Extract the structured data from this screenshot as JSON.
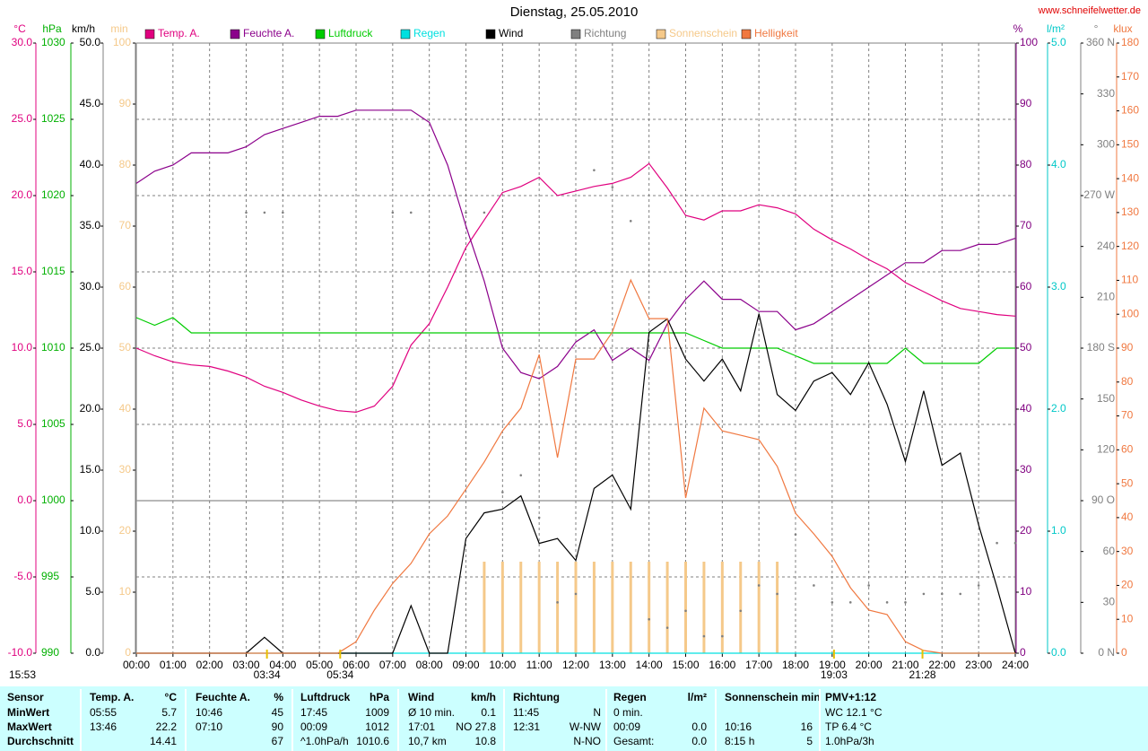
{
  "chart_data": {
    "type": "line",
    "title": "Dienstag, 25.05.2010",
    "source": "www.schneifelwetter.de",
    "timestamp": "15:53",
    "sun_times": [
      "03:34",
      "05:34",
      "19:03",
      "21:28"
    ],
    "x": [
      0,
      0.5,
      1,
      1.5,
      2,
      2.5,
      3,
      3.5,
      4,
      4.5,
      5,
      5.5,
      6,
      6.5,
      7,
      7.5,
      8,
      8.5,
      9,
      9.5,
      10,
      10.5,
      11,
      11.5,
      12,
      12.5,
      13,
      13.5,
      14,
      14.5,
      15,
      15.5,
      16,
      16.5,
      17,
      17.5,
      18,
      18.5,
      19,
      19.5,
      20,
      20.5,
      21,
      21.5,
      22,
      22.5,
      23,
      23.5,
      24
    ],
    "xlim": [
      0,
      24
    ],
    "xticks": [
      {
        "value": 0,
        "label": "00:00"
      },
      {
        "value": 1,
        "label": "01:00"
      },
      {
        "value": 2,
        "label": "02:00"
      },
      {
        "value": 3,
        "label": "03:00"
      },
      {
        "value": 4,
        "label": "04:00"
      },
      {
        "value": 5,
        "label": "05:00"
      },
      {
        "value": 6,
        "label": "06:00"
      },
      {
        "value": 7,
        "label": "07:00"
      },
      {
        "value": 8,
        "label": "08:00"
      },
      {
        "value": 9,
        "label": "09:00"
      },
      {
        "value": 10,
        "label": "10:00"
      },
      {
        "value": 11,
        "label": "11:00"
      },
      {
        "value": 12,
        "label": "12:00"
      },
      {
        "value": 13,
        "label": "13:00"
      },
      {
        "value": 14,
        "label": "14:00"
      },
      {
        "value": 15,
        "label": "15:00"
      },
      {
        "value": 16,
        "label": "16:00"
      },
      {
        "value": 17,
        "label": "17:00"
      },
      {
        "value": 18,
        "label": "18:00"
      },
      {
        "value": 19,
        "label": "19:00"
      },
      {
        "value": 20,
        "label": "20:00"
      },
      {
        "value": 21,
        "label": "21:00"
      },
      {
        "value": 22,
        "label": "22:00"
      },
      {
        "value": 23,
        "label": "23:00"
      },
      {
        "value": 24,
        "label": "24:00"
      }
    ],
    "grid": true,
    "axes": [
      {
        "label": "°C",
        "color": "#e0007f",
        "lim": [
          -10,
          30
        ],
        "ticks": [
          {
            "value": -10,
            "label": "-10.0"
          },
          {
            "value": -5,
            "label": "-5.0"
          },
          {
            "value": 0,
            "label": "0.0"
          },
          {
            "value": 5,
            "label": "5.0"
          },
          {
            "value": 10,
            "label": "10.0"
          },
          {
            "value": 15,
            "label": "15.0"
          },
          {
            "value": 20,
            "label": "20.0"
          },
          {
            "value": 25,
            "label": "25.0"
          },
          {
            "value": 30,
            "label": "30.0"
          }
        ]
      },
      {
        "label": "hPa",
        "color": "#00b000",
        "lim": [
          990,
          1030
        ],
        "ticks": [
          990,
          995,
          1000,
          1005,
          1010,
          1015,
          1020,
          1025,
          1030
        ]
      },
      {
        "label": "km/h",
        "color": "#000000",
        "lim": [
          0,
          50
        ],
        "ticks": [
          {
            "value": 0,
            "label": "0.0"
          },
          {
            "value": 5,
            "label": "5.0"
          },
          {
            "value": 10,
            "label": "10.0"
          },
          {
            "value": 15,
            "label": "15.0"
          },
          {
            "value": 20,
            "label": "20.0"
          },
          {
            "value": 25,
            "label": "25.0"
          },
          {
            "value": 30,
            "label": "30.0"
          },
          {
            "value": 35,
            "label": "35.0"
          },
          {
            "value": 40,
            "label": "40.0"
          },
          {
            "value": 45,
            "label": "45.0"
          },
          {
            "value": 50,
            "label": "50.0"
          }
        ]
      },
      {
        "label": "min",
        "color": "#f5c98a",
        "lim": [
          0,
          100
        ],
        "ticks": [
          0,
          10,
          20,
          30,
          40,
          50,
          60,
          70,
          80,
          90,
          100
        ]
      },
      {
        "label": "%",
        "color": "#800080",
        "lim": [
          0,
          100
        ],
        "ticks": [
          0,
          10,
          20,
          30,
          40,
          50,
          60,
          70,
          80,
          90,
          100
        ]
      },
      {
        "label": "l/m²",
        "color": "#00c8c8",
        "lim": [
          0,
          5
        ],
        "ticks": [
          {
            "value": 0,
            "label": "0.0"
          },
          {
            "value": 1,
            "label": "1.0"
          },
          {
            "value": 2,
            "label": "2.0"
          },
          {
            "value": 3,
            "label": "3.0"
          },
          {
            "value": 4,
            "label": "4.0"
          },
          {
            "value": 5,
            "label": "5.0"
          }
        ]
      },
      {
        "label": "°",
        "color": "#808080",
        "lim": [
          0,
          360
        ],
        "ticks": [
          {
            "value": 0,
            "label": "0 N"
          },
          30,
          60,
          {
            "value": 90,
            "label": "90 O"
          },
          120,
          150,
          {
            "value": 180,
            "label": "180 S"
          },
          210,
          240,
          {
            "value": 270,
            "label": "270 W"
          },
          300,
          330,
          {
            "value": 360,
            "label": "360 N"
          }
        ]
      },
      {
        "label": "klux",
        "color": "#f07840",
        "lim": [
          0,
          180
        ],
        "ticks": [
          0,
          10,
          20,
          30,
          40,
          50,
          60,
          70,
          80,
          90,
          100,
          110,
          120,
          130,
          140,
          150,
          160,
          170,
          180
        ]
      }
    ],
    "series": [
      {
        "name": "Temp. A.",
        "color": "#e0007f",
        "type": "line",
        "axis": 0,
        "values": [
          10.0,
          9.5,
          9.1,
          8.9,
          8.8,
          8.5,
          8.1,
          7.5,
          7.1,
          6.6,
          6.2,
          5.9,
          5.8,
          6.2,
          7.5,
          10.2,
          11.6,
          14.0,
          16.6,
          18.4,
          20.2,
          20.6,
          21.2,
          20.0,
          20.3,
          20.6,
          20.8,
          21.2,
          22.1,
          20.5,
          18.7,
          18.4,
          19.0,
          19.0,
          19.4,
          19.2,
          18.8,
          17.8,
          17.1,
          16.5,
          15.8,
          15.2,
          14.3,
          13.7,
          13.1,
          12.6,
          12.4,
          12.2,
          12.1
        ]
      },
      {
        "name": "Feuchte A.",
        "color": "#8b008b",
        "type": "line",
        "axis": 4,
        "values": [
          77,
          79,
          80,
          82,
          82,
          82,
          83,
          85,
          86,
          87,
          88,
          88,
          89,
          89,
          89,
          89,
          87,
          80,
          70,
          61,
          50,
          46,
          45,
          47,
          51,
          53,
          48,
          50,
          48,
          54,
          58,
          61,
          58,
          58,
          56,
          56,
          53,
          54,
          56,
          58,
          60,
          62,
          64,
          64,
          66,
          66,
          67,
          67,
          68
        ]
      },
      {
        "name": "Luftdruck",
        "color": "#00cc00",
        "type": "line",
        "axis": 1,
        "values": [
          1012,
          1011.5,
          1012,
          1011,
          1011,
          1011,
          1011,
          1011,
          1011,
          1011,
          1011,
          1011,
          1011,
          1011,
          1011,
          1011,
          1011,
          1011,
          1011,
          1011,
          1011,
          1011,
          1011,
          1011,
          1011,
          1011,
          1011,
          1011,
          1011,
          1011,
          1011,
          1010.5,
          1010,
          1010,
          1010,
          1010,
          1009.5,
          1009,
          1009,
          1009,
          1009,
          1009,
          1010,
          1009,
          1009,
          1009,
          1009,
          1010,
          1010
        ]
      },
      {
        "name": "Regen",
        "color": "#00e0e0",
        "type": "line",
        "axis": 5,
        "values": [
          0,
          0,
          0,
          0,
          0,
          0,
          0,
          0,
          0,
          0,
          0,
          0,
          0,
          0,
          0,
          0,
          0,
          0,
          0,
          0,
          0,
          0,
          0,
          0,
          0,
          0,
          0,
          0,
          0,
          0,
          0,
          0,
          0,
          0,
          0,
          0,
          0,
          0,
          0,
          0,
          0,
          0,
          0,
          0,
          0,
          0,
          0,
          0,
          0
        ]
      },
      {
        "name": "Wind",
        "color": "#000000",
        "type": "line",
        "axis": 2,
        "values": [
          0,
          0,
          0,
          0,
          0,
          0,
          0,
          1.3,
          0,
          0,
          0,
          0,
          0,
          0,
          0,
          3.9,
          0,
          0,
          9.4,
          11.5,
          11.8,
          12.9,
          9.0,
          9.4,
          7.6,
          13.5,
          14.6,
          11.8,
          26.3,
          27.4,
          24.1,
          22.3,
          24.1,
          21.5,
          27.8,
          21.2,
          19.9,
          22.3,
          23.0,
          21.2,
          23.8,
          20.4,
          15.7,
          21.5,
          15.4,
          16.4,
          10.5,
          5.4,
          0
        ]
      },
      {
        "name": "Richtung",
        "color": "#808080",
        "type": "scatter",
        "axis": 6,
        "values": [
          null,
          null,
          null,
          null,
          null,
          null,
          260,
          260,
          260,
          null,
          null,
          null,
          null,
          null,
          260,
          260,
          null,
          null,
          260,
          260,
          95,
          105,
          80,
          30,
          35,
          285,
          275,
          255,
          20,
          15,
          25,
          10,
          10,
          25,
          40,
          35,
          70,
          40,
          30,
          30,
          40,
          30,
          30,
          35,
          35,
          35,
          40,
          65,
          65
        ]
      },
      {
        "name": "Sonnenschein",
        "color": "#f5c98a",
        "type": "bar",
        "axis": 3,
        "values": [
          0,
          0,
          0,
          0,
          0,
          0,
          0,
          0,
          0,
          0,
          0,
          0,
          0,
          0,
          0,
          0,
          0,
          0,
          0,
          15,
          15,
          15,
          15,
          15,
          15,
          15,
          15,
          15,
          15,
          15,
          15,
          15,
          15,
          15,
          15,
          15,
          0,
          0,
          0,
          0,
          0,
          0,
          0,
          0,
          0,
          0,
          0,
          0,
          0
        ]
      },
      {
        "name": "Helligkeit",
        "color": "#f07840",
        "type": "line",
        "axis": 7,
        "values": [
          0,
          0,
          0,
          0,
          0,
          0,
          0,
          0,
          0,
          0,
          0,
          0,
          3.4,
          12.7,
          20.6,
          26.5,
          35.2,
          40.5,
          48.4,
          56.4,
          65.6,
          72.3,
          88.1,
          57.7,
          86.8,
          86.8,
          94.8,
          110.1,
          98.7,
          98.7,
          45.8,
          72.3,
          65.6,
          64.3,
          63.0,
          55.1,
          41.3,
          35.2,
          28.6,
          19.3,
          12.7,
          11.4,
          3.4,
          0.8,
          0,
          0,
          0,
          0,
          0
        ]
      }
    ]
  },
  "table": {
    "header": [
      "Sensor",
      "Temp. A.",
      "°C",
      "Feuchte A.",
      "%",
      "Luftdruck",
      "hPa",
      "Wind",
      "km/h",
      "Richtung",
      null,
      "Regen",
      "l/m²",
      "Sonnenschein min",
      null,
      "PMV+1:12"
    ],
    "rows": [
      [
        "MinWert",
        "05:55",
        "5.7",
        "10:46",
        "45",
        "17:45",
        "1009",
        "Ø 10 min.",
        "0.1",
        "11:45",
        "N",
        "0 min.",
        null,
        null,
        null,
        "WC 12.1 °C"
      ],
      [
        "MaxWert",
        "13:46",
        "22.2",
        "07:10",
        "90",
        "00:09",
        "1012",
        "17:01",
        "NO 27.8",
        "12:31",
        "W-NW",
        "00:09",
        "0.0",
        "10:16",
        "16",
        "TP 6.4 °C"
      ],
      [
        "Durchschnitt",
        null,
        "14.41",
        null,
        "67",
        "^1.0hPa/h",
        "1010.6",
        "10,7 km",
        "10.8",
        null,
        "N-NO",
        "Gesamt:",
        "0.0",
        "8:15 h",
        "5",
        "1.0hPa/3h"
      ]
    ]
  }
}
